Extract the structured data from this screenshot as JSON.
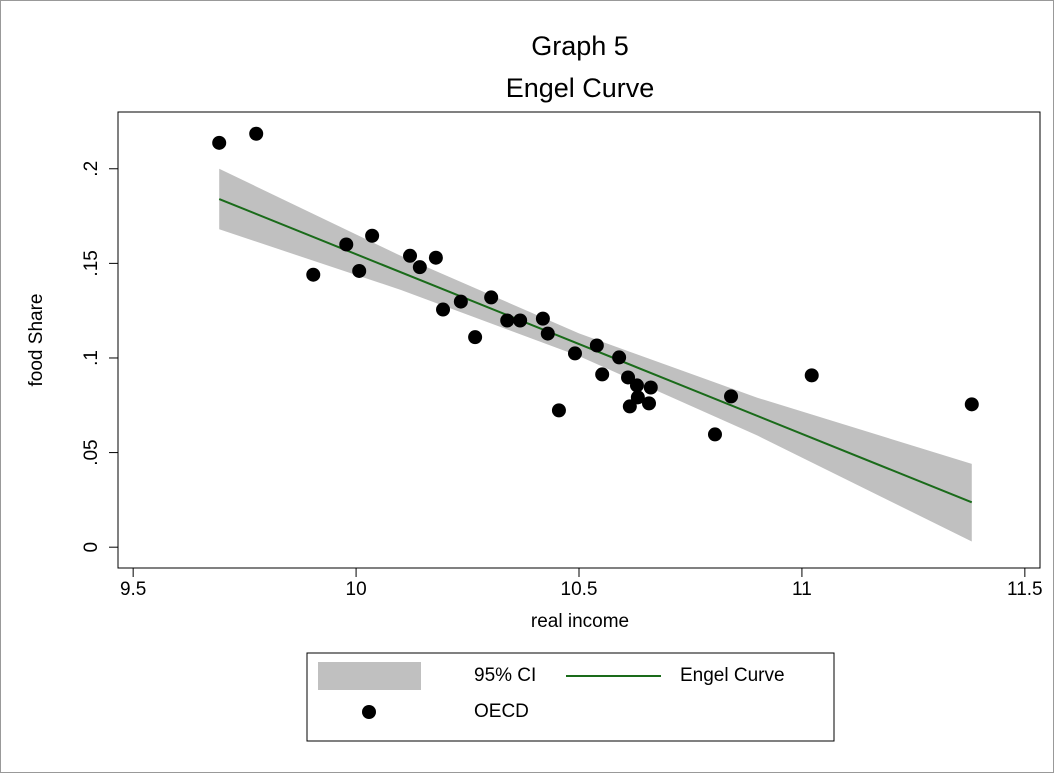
{
  "chart_data": {
    "type": "scatter",
    "title": "Graph 5",
    "subtitle": "Engel Curve",
    "x_label": "real income",
    "y_label": "food Share",
    "xlim": [
      9.466,
      11.534
    ],
    "ylim": [
      -0.011,
      0.23
    ],
    "xticks": [
      9.5,
      10,
      10.5,
      11,
      11.5
    ],
    "yticks": [
      0,
      {
        "value": 0.05,
        "label": ".05"
      },
      {
        "value": 0.1,
        "label": ".1"
      },
      {
        "value": 0.15,
        "label": ".15"
      },
      {
        "value": 0.2,
        "label": ".2"
      }
    ],
    "series": [
      {
        "name": "95% CI",
        "type": "area",
        "color": "#c0c0c0",
        "x": [
          9.693,
          10.1,
          10.5,
          10.9,
          11.381
        ],
        "lower": [
          0.168,
          0.136,
          0.101,
          0.059,
          0.003
        ],
        "upper": [
          0.2,
          0.154,
          0.113,
          0.079,
          0.044
        ]
      },
      {
        "name": "Engel Curve",
        "type": "line",
        "color": "#1a6b1a",
        "x": [
          9.693,
          11.381
        ],
        "values": [
          0.184,
          0.0237
        ]
      },
      {
        "name": "OECD",
        "type": "scatter",
        "color": "#000000",
        "x": [
          9.693,
          9.776,
          9.904,
          9.978,
          10.007,
          10.036,
          10.121,
          10.143,
          10.179,
          10.195,
          10.235,
          10.267,
          10.303,
          10.339,
          10.368,
          10.419,
          10.43,
          10.455,
          10.491,
          10.54,
          10.552,
          10.59,
          10.61,
          10.614,
          10.63,
          10.632,
          10.657,
          10.661,
          10.805,
          10.841,
          11.022,
          11.381
        ],
        "values": [
          0.2137,
          0.2185,
          0.144,
          0.16,
          0.146,
          0.1646,
          0.154,
          0.148,
          0.153,
          0.1256,
          0.1298,
          0.111,
          0.132,
          0.1198,
          0.1198,
          0.1208,
          0.1129,
          0.0723,
          0.1024,
          0.1066,
          0.0913,
          0.1003,
          0.0897,
          0.0744,
          0.0855,
          0.0792,
          0.076,
          0.0844,
          0.0596,
          0.0797,
          0.0908,
          0.0755
        ]
      }
    ]
  }
}
